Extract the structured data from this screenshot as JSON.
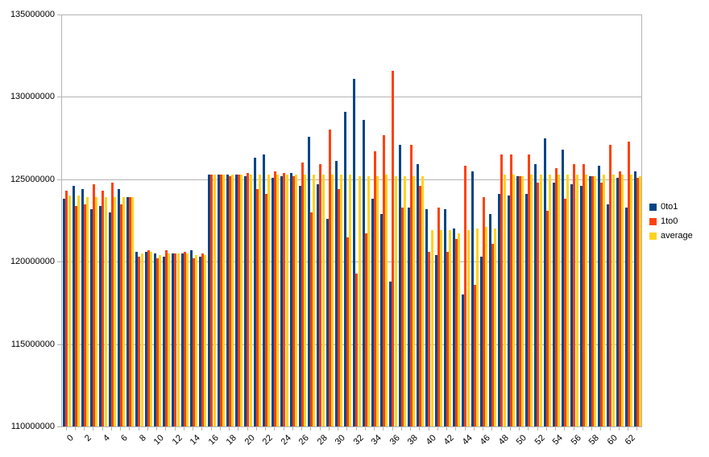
{
  "chart_data": {
    "type": "bar",
    "title": "",
    "xlabel": "",
    "ylabel": "",
    "ylim": [
      110000000,
      135000000
    ],
    "ytick_interval": 5000000,
    "ytick_labels": [
      "110000000",
      "115000000",
      "120000000",
      "125000000",
      "130000000",
      "135000000"
    ],
    "grid": "horizontal",
    "legend_position": "right",
    "categories": [
      0,
      1,
      2,
      3,
      4,
      5,
      6,
      7,
      8,
      9,
      10,
      11,
      12,
      13,
      14,
      15,
      16,
      17,
      18,
      19,
      20,
      21,
      22,
      23,
      24,
      25,
      26,
      27,
      28,
      29,
      30,
      31,
      32,
      33,
      34,
      35,
      36,
      37,
      38,
      39,
      40,
      41,
      42,
      43,
      44,
      45,
      46,
      47,
      48,
      49,
      50,
      51,
      52,
      53,
      54,
      55,
      56,
      57,
      58,
      59,
      60,
      61,
      62,
      63
    ],
    "x_tick_labels": [
      "0",
      "2",
      "4",
      "6",
      "8",
      "10",
      "12",
      "14",
      "16",
      "18",
      "20",
      "22",
      "24",
      "26",
      "28",
      "30",
      "32",
      "34",
      "36",
      "38",
      "40",
      "42",
      "44",
      "46",
      "48",
      "50",
      "52",
      "54",
      "56",
      "58",
      "60",
      "62"
    ],
    "series": [
      {
        "name": "0to1",
        "color": "#004586",
        "values": [
          123800000,
          124600000,
          124400000,
          123200000,
          123400000,
          123000000,
          124400000,
          123900000,
          120600000,
          120600000,
          120500000,
          120300000,
          120500000,
          120500000,
          120700000,
          120300000,
          125300000,
          125300000,
          125300000,
          125300000,
          125200000,
          126300000,
          126500000,
          125100000,
          125200000,
          125400000,
          124600000,
          127600000,
          124700000,
          122600000,
          126100000,
          129100000,
          131100000,
          128600000,
          123800000,
          122900000,
          118800000,
          127100000,
          123300000,
          125900000,
          123200000,
          120400000,
          123200000,
          122000000,
          118000000,
          125500000,
          120300000,
          122900000,
          124100000,
          124000000,
          125200000,
          124100000,
          125900000,
          127500000,
          124800000,
          126800000,
          124700000,
          124600000,
          125200000,
          125800000,
          123500000,
          125100000,
          123300000,
          125500000
        ]
      },
      {
        "name": "1to0",
        "color": "#ff420e",
        "values": [
          124300000,
          123400000,
          123500000,
          124700000,
          124300000,
          124800000,
          123500000,
          123900000,
          120300000,
          120700000,
          120200000,
          120700000,
          120500000,
          120600000,
          120200000,
          120500000,
          125300000,
          125300000,
          125200000,
          125300000,
          125400000,
          124400000,
          124100000,
          125500000,
          125400000,
          125200000,
          126000000,
          123000000,
          125900000,
          128000000,
          124400000,
          121500000,
          119300000,
          121700000,
          126700000,
          127700000,
          131600000,
          123300000,
          127100000,
          124600000,
          120600000,
          123300000,
          120600000,
          121400000,
          125800000,
          118600000,
          123900000,
          121100000,
          126500000,
          126500000,
          125200000,
          126500000,
          124800000,
          123100000,
          125700000,
          123800000,
          125900000,
          125900000,
          125200000,
          124800000,
          127100000,
          125500000,
          127300000,
          125100000
        ]
      },
      {
        "name": "average",
        "color": "#ffd320",
        "values": [
          124000000,
          124000000,
          123900000,
          123900000,
          123900000,
          123900000,
          123900000,
          123900000,
          120500000,
          120600000,
          120400000,
          120500000,
          120500000,
          120500000,
          120400000,
          120400000,
          125300000,
          125300000,
          125300000,
          125300000,
          125300000,
          125300000,
          125300000,
          125300000,
          125300000,
          125300000,
          125300000,
          125300000,
          125300000,
          125300000,
          125300000,
          125300000,
          125200000,
          125200000,
          125200000,
          125300000,
          125200000,
          125200000,
          125200000,
          125200000,
          121900000,
          121900000,
          121900000,
          121700000,
          121900000,
          122000000,
          122100000,
          122000000,
          125300000,
          125300000,
          125200000,
          125300000,
          125300000,
          125300000,
          125300000,
          125300000,
          125300000,
          125300000,
          125200000,
          125300000,
          125300000,
          125300000,
          125300000,
          125200000
        ]
      }
    ]
  },
  "legend": {
    "items": [
      {
        "label": "0to1",
        "color": "#004586"
      },
      {
        "label": "1to0",
        "color": "#ff420e"
      },
      {
        "label": "average",
        "color": "#ffd320"
      }
    ]
  },
  "colors": {
    "background": "#ffffff",
    "grid": "#b3b3b3",
    "text": "#000000"
  }
}
